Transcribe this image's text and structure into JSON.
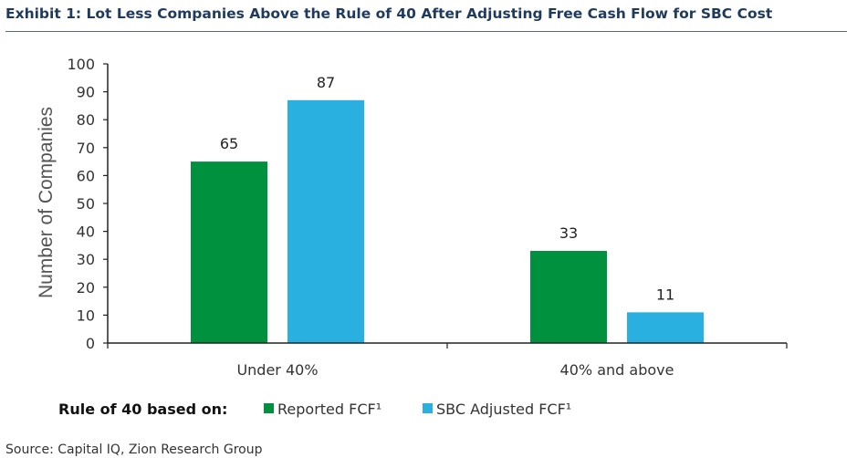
{
  "header": {
    "title": "Exhibit 1: Lot Less Companies Above the Rule of 40 After Adjusting Free Cash Flow for SBC Cost"
  },
  "footer": {
    "source": "Source: Capital IQ, Zion Research Group"
  },
  "colors": {
    "reported": "#00913f",
    "sbc_adjusted": "#29b0e0",
    "title_text": "#1f3a5f",
    "axis": "#222222",
    "text": "#333333"
  },
  "chart_data": {
    "type": "bar",
    "title": "",
    "categories": [
      "Under 40%",
      "40% and above"
    ],
    "series": [
      {
        "name": "Reported FCF¹",
        "values": [
          65,
          33
        ]
      },
      {
        "name": "SBC Adjusted FCF¹",
        "values": [
          87,
          11
        ]
      }
    ],
    "xlabel": "",
    "ylabel": "Number of Companies",
    "ylim": [
      0,
      100
    ],
    "yticks": [
      0,
      10,
      20,
      30,
      40,
      50,
      60,
      70,
      80,
      90,
      100
    ],
    "grid": false,
    "legend_title": "Rule of 40 based on:",
    "legend_position": "bottom"
  }
}
